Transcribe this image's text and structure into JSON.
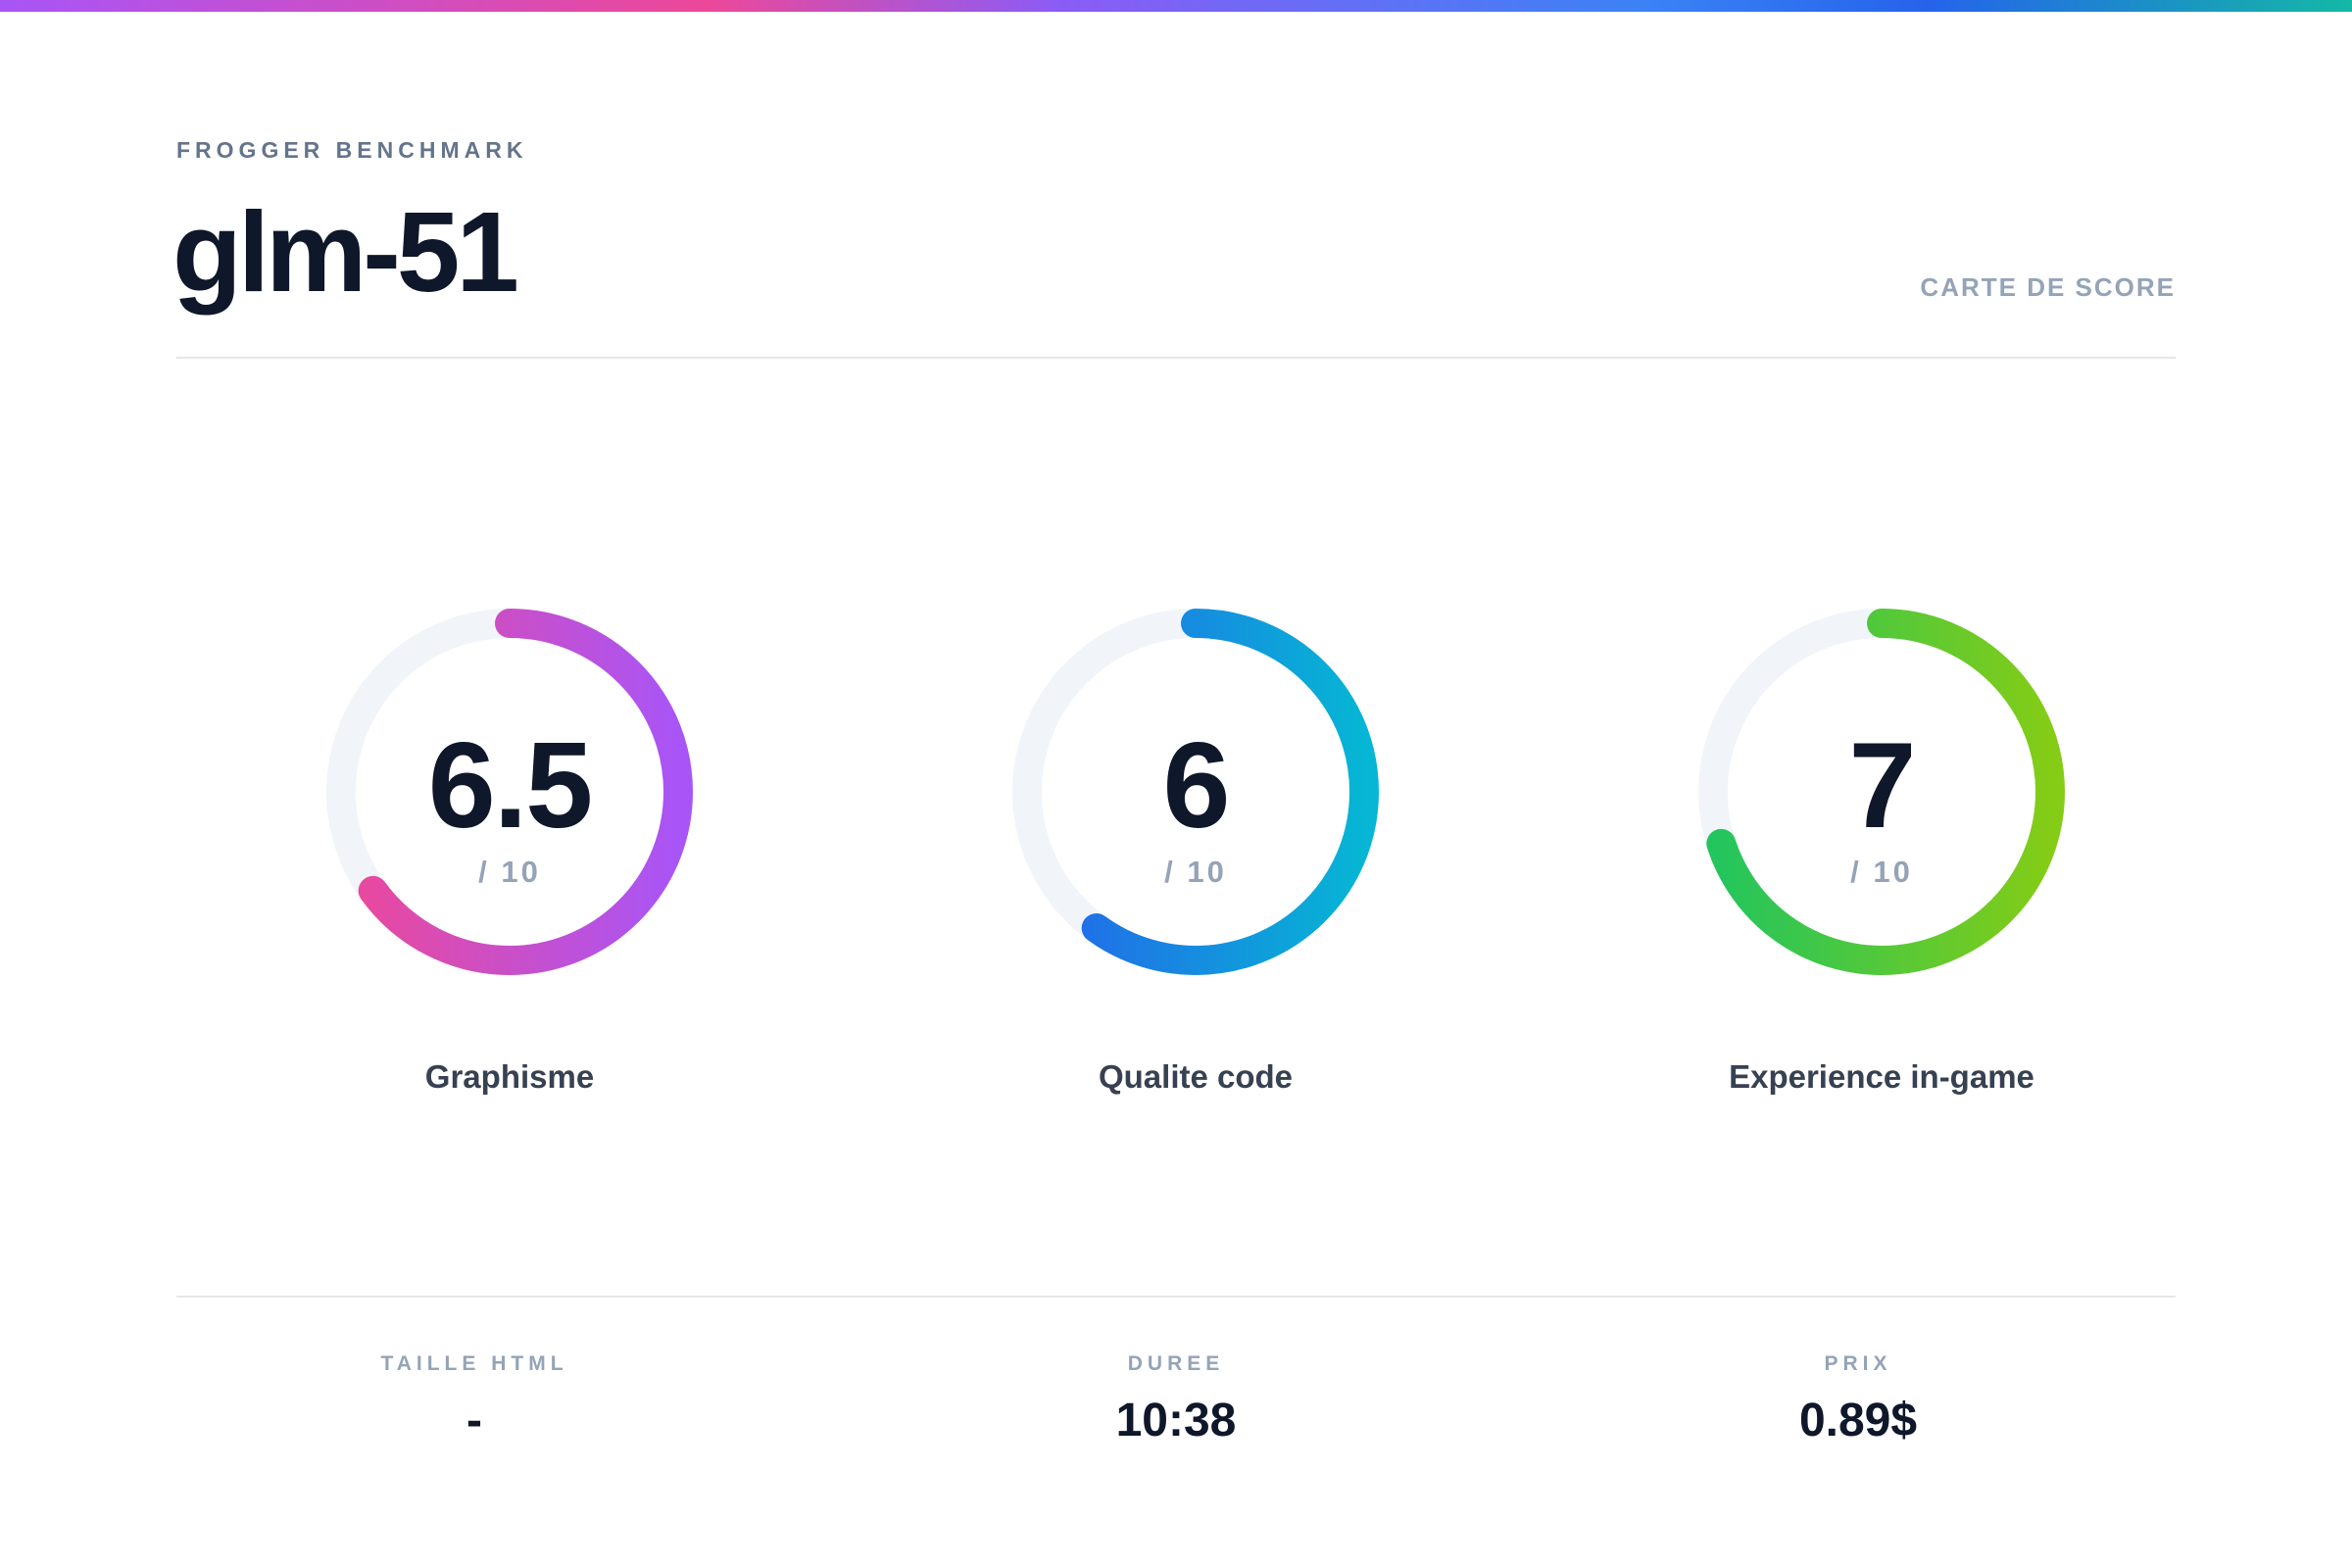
{
  "header": {
    "eyebrow": "FROGGER BENCHMARK",
    "title": "glm-51",
    "card_label": "CARTE DE SCORE"
  },
  "gauges": [
    {
      "label": "Graphisme",
      "value": "6.5",
      "max_text": "/ 10",
      "score": 6.5,
      "max": 10,
      "colors": [
        "#ec4899",
        "#a855f7"
      ]
    },
    {
      "label": "Qualite code",
      "value": "6",
      "max_text": "/ 10",
      "score": 6,
      "max": 10,
      "colors": [
        "#2563eb",
        "#06b6d4"
      ]
    },
    {
      "label": "Experience in-game",
      "value": "7",
      "max_text": "/ 10",
      "score": 7,
      "max": 10,
      "colors": [
        "#22c55e",
        "#84cc16"
      ]
    }
  ],
  "stats": [
    {
      "label": "TAILLE HTML",
      "value": "-"
    },
    {
      "label": "DUREE",
      "value": "10:38"
    },
    {
      "label": "PRIX",
      "value": "0.89$"
    }
  ],
  "colors": {
    "track": "#f1f5f9",
    "title": "#0f172a",
    "muted": "#94a3b8"
  }
}
